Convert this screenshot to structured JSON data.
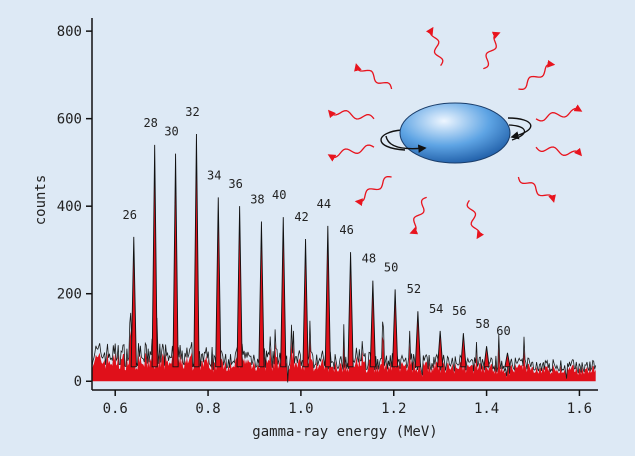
{
  "chart_data": {
    "type": "line",
    "title": "",
    "xlabel": "gamma-ray energy (MeV)",
    "ylabel": "counts",
    "xlim": [
      0.55,
      1.64
    ],
    "ylim": [
      -20,
      830
    ],
    "xticks": [
      {
        "v": 0.6,
        "label": "0.6"
      },
      {
        "v": 0.8,
        "label": "0.8"
      },
      {
        "v": 1.0,
        "label": "1.0"
      },
      {
        "v": 1.2,
        "label": "1.2"
      },
      {
        "v": 1.4,
        "label": "1.4"
      },
      {
        "v": 1.6,
        "label": "1.6"
      }
    ],
    "yticks": [
      {
        "v": 0,
        "label": "0"
      },
      {
        "v": 200,
        "label": "200"
      },
      {
        "v": 400,
        "label": "400"
      },
      {
        "v": 600,
        "label": "600"
      },
      {
        "v": 800,
        "label": "800"
      }
    ],
    "background_level": 55,
    "peaks": [
      {
        "spin": "26",
        "energy": 0.64,
        "counts": 330
      },
      {
        "spin": "28",
        "energy": 0.685,
        "counts": 540
      },
      {
        "spin": "30",
        "energy": 0.73,
        "counts": 520
      },
      {
        "spin": "32",
        "energy": 0.775,
        "counts": 565
      },
      {
        "spin": "34",
        "energy": 0.822,
        "counts": 420
      },
      {
        "spin": "36",
        "energy": 0.868,
        "counts": 400
      },
      {
        "spin": "38",
        "energy": 0.915,
        "counts": 365
      },
      {
        "spin": "40",
        "energy": 0.962,
        "counts": 375
      },
      {
        "spin": "42",
        "energy": 1.01,
        "counts": 325
      },
      {
        "spin": "44",
        "energy": 1.058,
        "counts": 355
      },
      {
        "spin": "46",
        "energy": 1.107,
        "counts": 295
      },
      {
        "spin": "48",
        "energy": 1.155,
        "counts": 230
      },
      {
        "spin": "50",
        "energy": 1.203,
        "counts": 210
      },
      {
        "spin": "52",
        "energy": 1.252,
        "counts": 160
      },
      {
        "spin": "54",
        "energy": 1.3,
        "counts": 115
      },
      {
        "spin": "56",
        "energy": 1.35,
        "counts": 110
      },
      {
        "spin": "58",
        "energy": 1.4,
        "counts": 80
      },
      {
        "spin": "60",
        "energy": 1.445,
        "counts": 65
      }
    ]
  },
  "illustration": {
    "nucleus_colors": [
      "#eef6ff",
      "#5ea4e4",
      "#1c5aa4"
    ],
    "radiation_color": "#e8141e",
    "rotation_arrow_color": "#111111"
  }
}
